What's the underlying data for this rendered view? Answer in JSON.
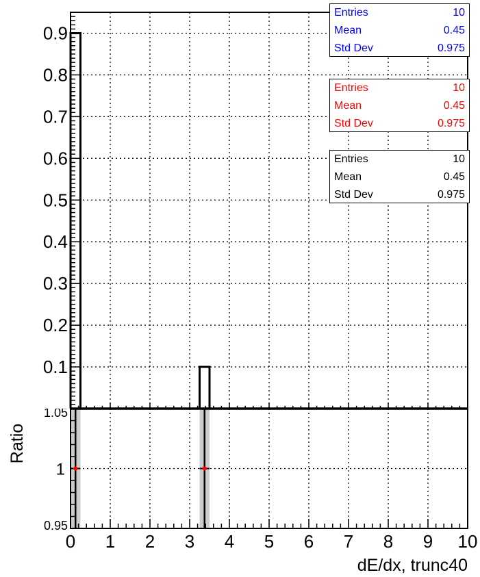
{
  "colors": {
    "blue": "#0000ff",
    "red": "#ff0000",
    "black": "#000000",
    "band": "#cccccc"
  },
  "stat_boxes": [
    {
      "color": "#0000ff",
      "rows": [
        {
          "label": "Entries",
          "value": "10"
        },
        {
          "label": "Mean",
          "value": "0.45"
        },
        {
          "label": "Std Dev",
          "value": "0.975"
        }
      ]
    },
    {
      "color": "#ff0000",
      "rows": [
        {
          "label": "Entries",
          "value": "10"
        },
        {
          "label": "Mean",
          "value": "0.45"
        },
        {
          "label": "Std Dev",
          "value": "0.975"
        }
      ]
    },
    {
      "color": "#000000",
      "rows": [
        {
          "label": "Entries",
          "value": "10"
        },
        {
          "label": "Mean",
          "value": "0.45"
        },
        {
          "label": "Std Dev",
          "value": "0.975"
        }
      ]
    }
  ],
  "chart_data": [
    {
      "type": "bar",
      "title": "",
      "xlabel": "",
      "ylabel": "",
      "xlim": [
        0,
        10
      ],
      "ylim": [
        0,
        0.95
      ],
      "grid": true,
      "y_ticks": [
        "0.1",
        "0.2",
        "0.3",
        "0.4",
        "0.5",
        "0.6",
        "0.7",
        "0.8",
        "0.9"
      ],
      "y_tick_values": [
        0.1,
        0.2,
        0.3,
        0.4,
        0.5,
        0.6,
        0.7,
        0.8,
        0.9
      ],
      "bins": [
        {
          "x_low": 0.0,
          "x_high": 0.25,
          "value": 0.9
        },
        {
          "x_low": 3.25,
          "x_high": 3.5,
          "value": 0.1
        }
      ],
      "series": [
        {
          "color": "#0000ff"
        },
        {
          "color": "#ff0000"
        },
        {
          "color": "#000000"
        }
      ]
    },
    {
      "type": "scatter",
      "title": "",
      "xlabel": "dE/dx, trunc40",
      "ylabel": "Ratio",
      "xlim": [
        0,
        10
      ],
      "ylim": [
        0.95,
        1.05
      ],
      "grid": true,
      "y_ticks": [
        "0.95",
        "1",
        "1.05"
      ],
      "y_tick_values": [
        0.95,
        1.0,
        1.05
      ],
      "x_ticks": [
        "0",
        "1",
        "2",
        "3",
        "4",
        "5",
        "6",
        "7",
        "8",
        "9",
        "10"
      ],
      "x_tick_values": [
        0,
        1,
        2,
        3,
        4,
        5,
        6,
        7,
        8,
        9,
        10
      ],
      "points": [
        {
          "x": 0.125,
          "y": 1.0,
          "band": [
            0.0,
            0.25
          ]
        },
        {
          "x": 3.375,
          "y": 1.0,
          "band": [
            3.25,
            3.5
          ]
        }
      ]
    }
  ]
}
